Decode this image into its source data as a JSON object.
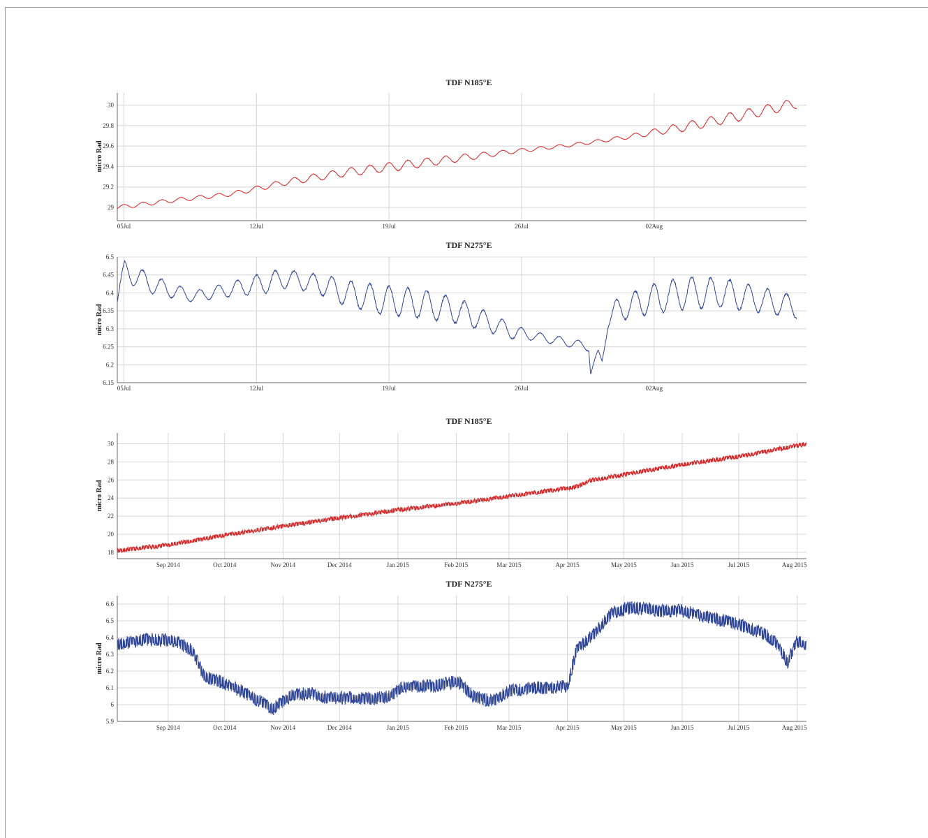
{
  "chart_data": [
    {
      "type": "line",
      "title": "TDF N185°E",
      "xlabel": "",
      "ylabel": "micro Rad",
      "x_ticks": [
        "05Jul",
        "12Jul",
        "19Jul",
        "26Jul",
        "02Aug"
      ],
      "y_ticks": [
        "29",
        "29.2",
        "29.4",
        "29.6",
        "29.8",
        "30"
      ],
      "xlim_days": [
        0,
        36.4
      ],
      "ylim": [
        28.87,
        30.12
      ],
      "color": "#d62728",
      "series": [
        {
          "x_days": [
            0,
            3,
            6,
            9,
            12,
            15,
            18,
            21,
            24,
            27,
            30,
            33,
            35.9
          ],
          "values": [
            29.0,
            29.07,
            29.13,
            29.25,
            29.34,
            29.41,
            29.48,
            29.55,
            29.61,
            29.69,
            29.79,
            29.9,
            30.02
          ],
          "daily_amplitude": [
            0.02,
            0.02,
            0.02,
            0.03,
            0.04,
            0.045,
            0.035,
            0.02,
            0.015,
            0.02,
            0.045,
            0.05,
            0.05
          ]
        }
      ]
    },
    {
      "type": "line",
      "title": "TDF N275°E",
      "xlabel": "",
      "ylabel": "micro Rad",
      "x_ticks": [
        "05Jul",
        "12Jul",
        "19Jul",
        "26Jul",
        "02Aug"
      ],
      "y_ticks": [
        "6.15",
        "6.2",
        "6.25",
        "6.3",
        "6.35",
        "6.4",
        "6.45",
        "6.5"
      ],
      "xlim_days": [
        0,
        36.4
      ],
      "ylim": [
        6.15,
        6.5
      ],
      "color": "#2f4596",
      "series": [
        {
          "x_days": [
            0,
            0.4,
            2,
            4,
            6,
            7,
            8,
            9,
            10,
            11,
            12,
            14,
            16,
            18,
            20,
            21,
            22,
            23,
            24,
            24.9,
            25.0,
            25.4,
            25.6,
            25.9,
            26.3,
            28,
            30,
            32,
            34,
            35.9
          ],
          "values": [
            6.39,
            6.46,
            6.42,
            6.39,
            6.41,
            6.42,
            6.43,
            6.44,
            6.43,
            6.42,
            6.4,
            6.38,
            6.37,
            6.35,
            6.31,
            6.29,
            6.28,
            6.27,
            6.26,
            6.25,
            6.18,
            6.23,
            6.21,
            6.32,
            6.35,
            6.38,
            6.4,
            6.4,
            6.38,
            6.36
          ],
          "daily_amplitude": [
            0.03,
            0.03,
            0.025,
            0.015,
            0.02,
            0.025,
            0.03,
            0.025,
            0.025,
            0.03,
            0.035,
            0.04,
            0.04,
            0.035,
            0.025,
            0.02,
            0.012,
            0.012,
            0.012,
            0.012,
            0.012,
            0.012,
            0.012,
            0.02,
            0.03,
            0.04,
            0.045,
            0.04,
            0.035,
            0.03
          ]
        }
      ]
    },
    {
      "type": "line",
      "title": "TDF N185°E",
      "xlabel": "",
      "ylabel": "micro Rad",
      "x_ticks": [
        "Sep 2014",
        "Oct 2014",
        "Nov 2014",
        "Dec 2014",
        "Jan 2015",
        "Feb 2015",
        "Mar 2015",
        "Apr 2015",
        "May 2015",
        "Jun 2015",
        "Jul 2015",
        "Aug 2015"
      ],
      "y_ticks": [
        "18",
        "20",
        "22",
        "24",
        "26",
        "28",
        "30"
      ],
      "xlim": [
        "2014-08-05",
        "2015-08-06"
      ],
      "ylim": [
        17.3,
        31.2
      ],
      "color": "#d62728",
      "series": [
        {
          "x": [
            "2014-08-05",
            "2014-09-01",
            "2014-10-01",
            "2014-11-01",
            "2014-12-01",
            "2015-01-01",
            "2015-02-01",
            "2015-03-01",
            "2015-04-01",
            "2015-04-07",
            "2015-04-12",
            "2015-05-01",
            "2015-06-01",
            "2015-07-01",
            "2015-08-06"
          ],
          "values": [
            18.2,
            18.8,
            19.9,
            20.9,
            21.8,
            22.7,
            23.4,
            24.2,
            25.1,
            25.3,
            25.9,
            26.6,
            27.7,
            28.6,
            30.0
          ]
        }
      ]
    },
    {
      "type": "line",
      "title": "TDF N275°E",
      "xlabel": "",
      "ylabel": "micro Rad",
      "x_ticks": [
        "Sep 2014",
        "Oct 2014",
        "Nov 2014",
        "Dec 2014",
        "Jan 2015",
        "Feb 2015",
        "Mar 2015",
        "Apr 2015",
        "May 2015",
        "Jun 2015",
        "Jul 2015",
        "Aug 2015"
      ],
      "y_ticks": [
        "5.9",
        "6",
        "6.1",
        "6.2",
        "6.3",
        "6.4",
        "6.5",
        "6.6"
      ],
      "xlim": [
        "2014-08-05",
        "2015-08-06"
      ],
      "ylim": [
        5.9,
        6.65
      ],
      "color": "#2f4596",
      "series": [
        {
          "x": [
            "2014-08-05",
            "2014-08-20",
            "2014-09-05",
            "2014-09-14",
            "2014-09-20",
            "2014-09-30",
            "2014-10-10",
            "2014-10-20",
            "2014-10-26",
            "2014-11-05",
            "2014-11-15",
            "2014-11-25",
            "2014-12-10",
            "2014-12-25",
            "2015-01-05",
            "2015-01-20",
            "2015-02-02",
            "2015-02-10",
            "2015-02-20",
            "2015-03-01",
            "2015-03-15",
            "2015-04-01",
            "2015-04-06",
            "2015-04-15",
            "2015-04-25",
            "2015-05-05",
            "2015-05-20",
            "2015-06-01",
            "2015-06-15",
            "2015-07-01",
            "2015-07-15",
            "2015-07-22",
            "2015-07-27",
            "2015-08-01",
            "2015-08-06"
          ],
          "values": [
            6.36,
            6.39,
            6.38,
            6.32,
            6.17,
            6.13,
            6.08,
            6.02,
            5.97,
            6.05,
            6.07,
            6.04,
            6.04,
            6.04,
            6.11,
            6.11,
            6.14,
            6.05,
            6.02,
            6.08,
            6.1,
            6.11,
            6.33,
            6.42,
            6.55,
            6.58,
            6.56,
            6.56,
            6.52,
            6.48,
            6.42,
            6.35,
            6.25,
            6.38,
            6.35
          ],
          "band_width": 0.04
        }
      ]
    }
  ]
}
